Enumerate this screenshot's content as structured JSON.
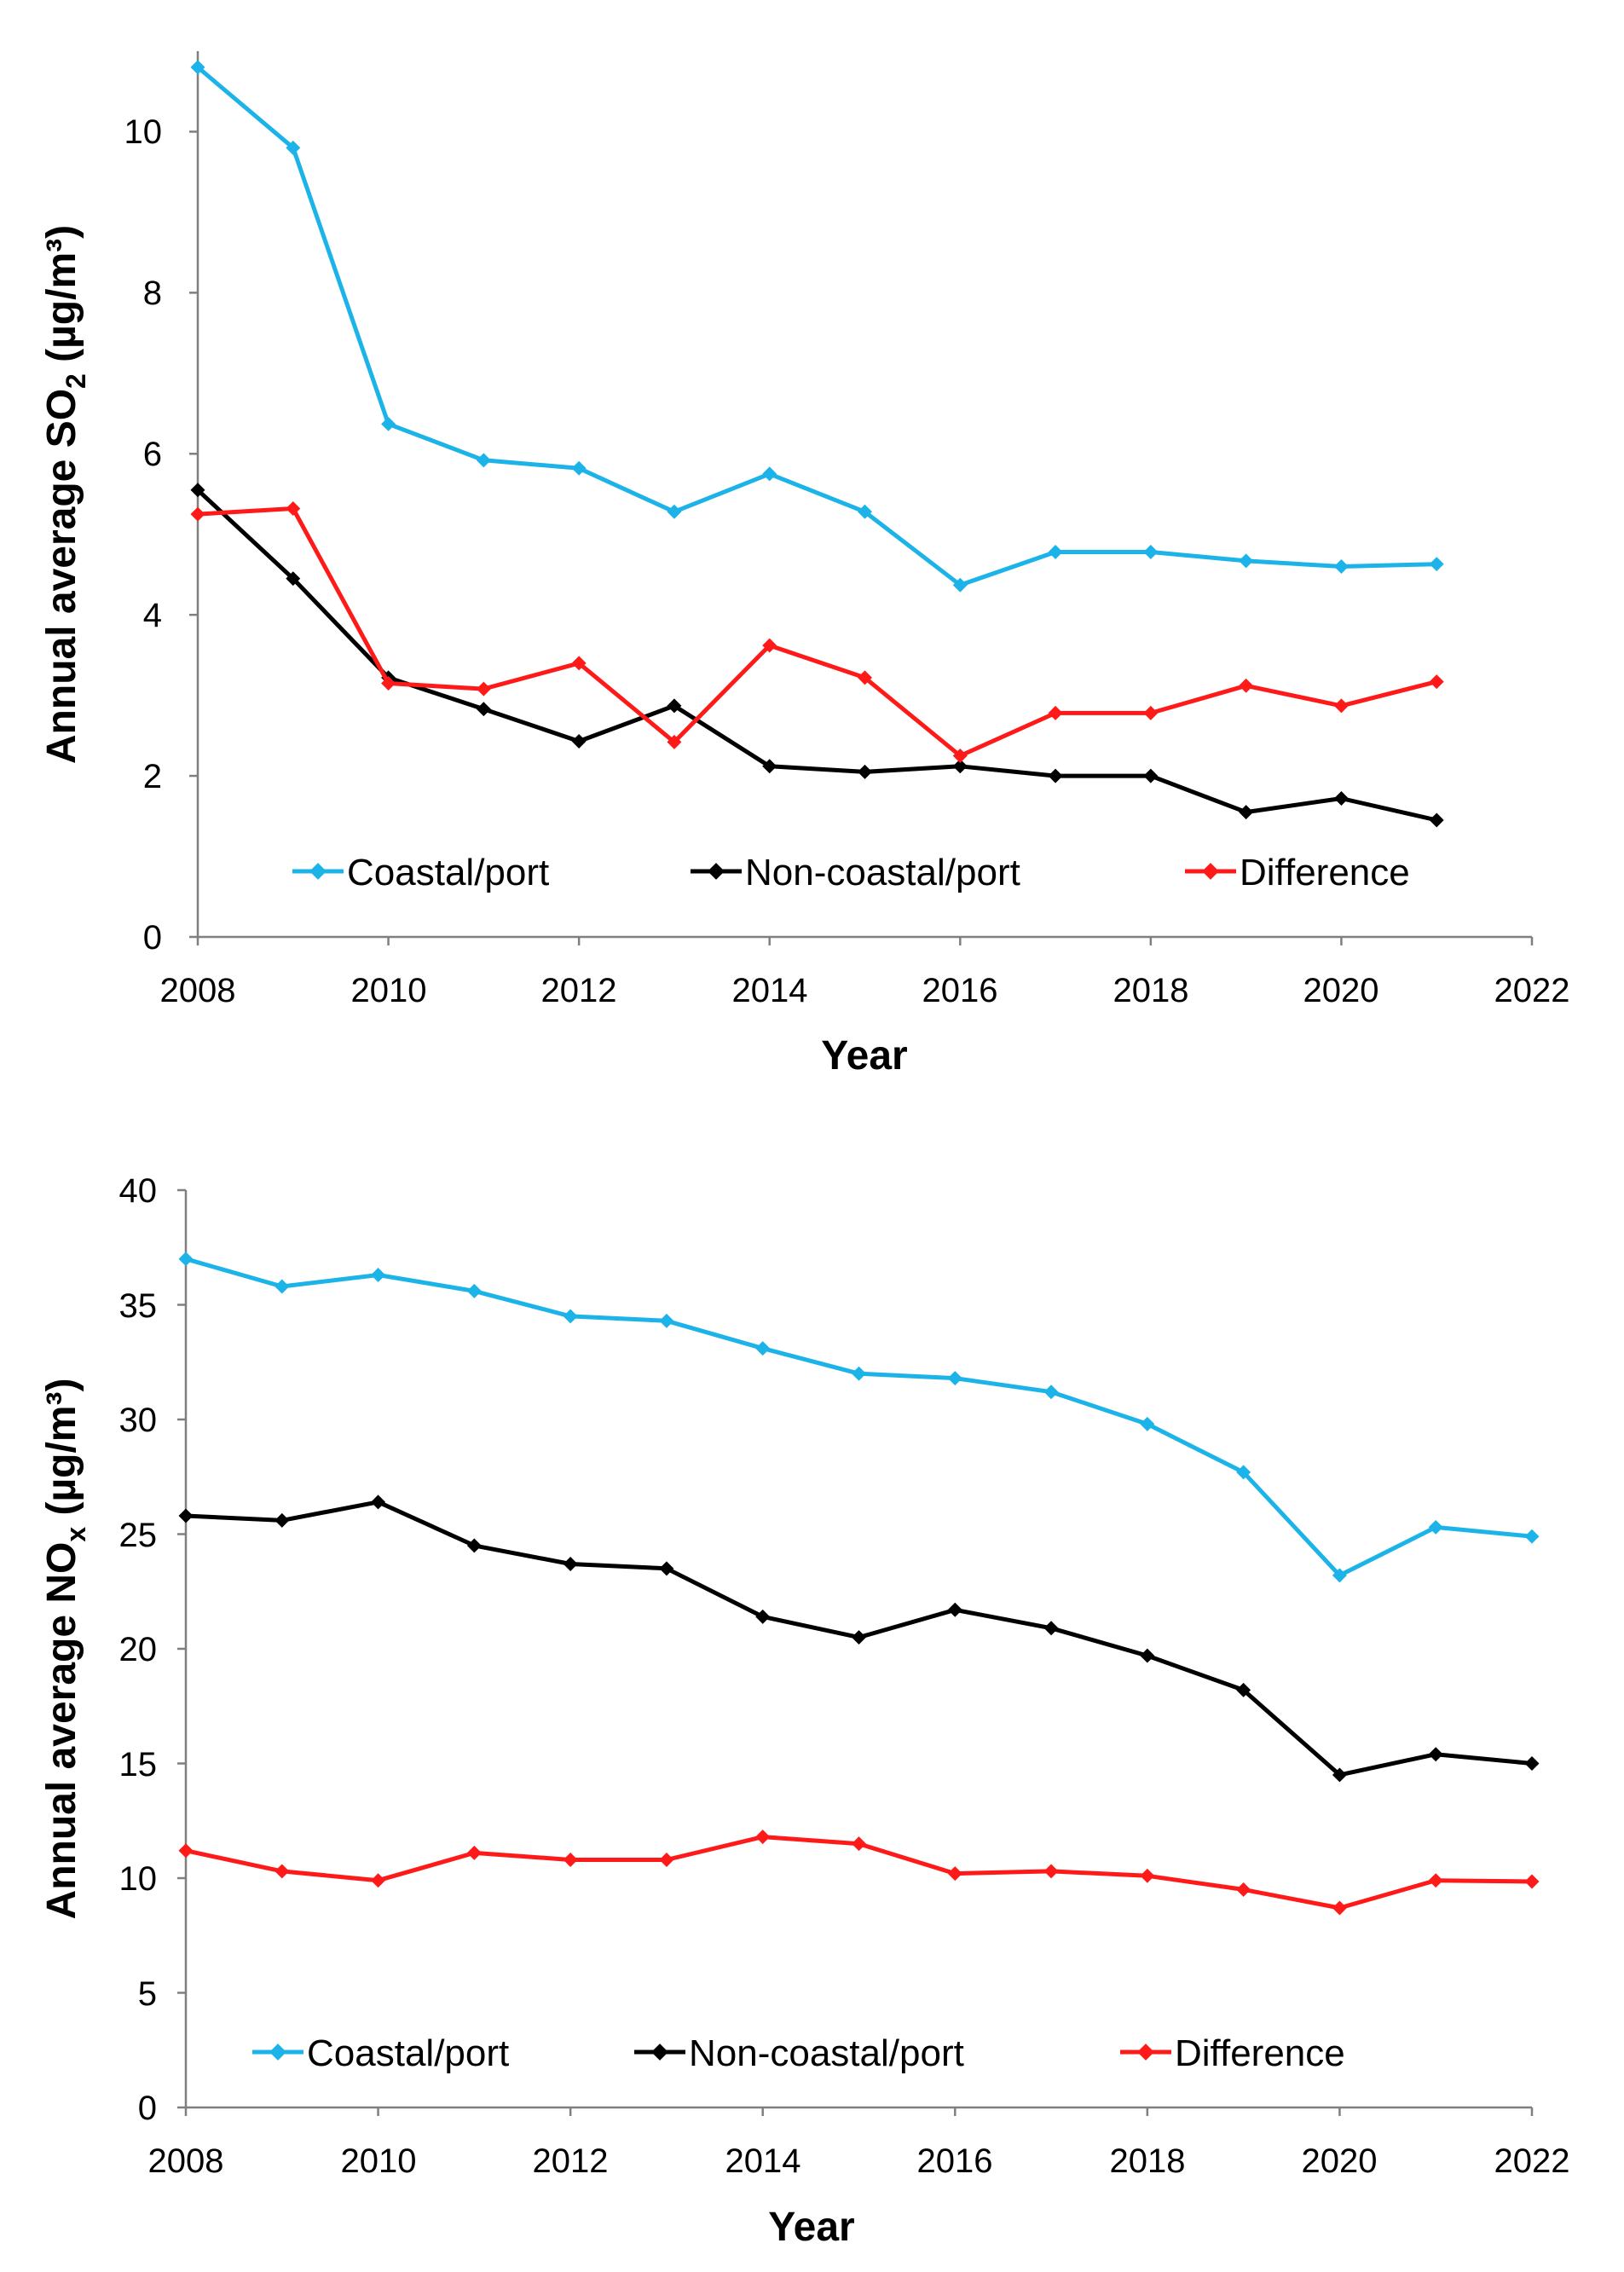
{
  "chart_data": [
    {
      "type": "line",
      "xlabel": "Year",
      "ylabel": "Annual average SO",
      "ylabel_subscript": "2",
      "ylabel_unit": " (µg/m³)",
      "xlim": [
        2008,
        2022
      ],
      "ylim": [
        0,
        11
      ],
      "xticks": [
        "2008",
        "2010",
        "2012",
        "2014",
        "2016",
        "2018",
        "2020",
        "2022"
      ],
      "yticks": [
        "0",
        "2",
        "4",
        "6",
        "8",
        "10"
      ],
      "x": [
        2008,
        2009,
        2010,
        2011,
        2012,
        2013,
        2014,
        2015,
        2016,
        2017,
        2018,
        2019,
        2020,
        2021
      ],
      "series": [
        {
          "name": "Coastal/port",
          "color": "#1cb4e8",
          "values": [
            10.8,
            9.8,
            6.37,
            5.92,
            5.82,
            5.28,
            5.75,
            5.28,
            4.37,
            4.78,
            4.78,
            4.67,
            4.6,
            4.63
          ]
        },
        {
          "name": "Non-coastal/port",
          "color": "#000000",
          "values": [
            5.55,
            4.45,
            3.22,
            2.83,
            2.43,
            2.87,
            2.12,
            2.05,
            2.12,
            2.0,
            2.0,
            1.55,
            1.72,
            1.45
          ]
        },
        {
          "name": "Difference",
          "color": "#ff1a1a",
          "values": [
            5.25,
            5.32,
            3.15,
            3.08,
            3.4,
            2.42,
            3.62,
            3.22,
            2.25,
            2.78,
            2.78,
            3.12,
            2.87,
            3.17
          ]
        }
      ],
      "legend": [
        "Coastal/port",
        "Non-coastal/port",
        "Difference"
      ]
    },
    {
      "type": "line",
      "xlabel": "Year",
      "ylabel": "Annual average NO",
      "ylabel_subscript": "x",
      "ylabel_unit": " (µg/m³)",
      "xlim": [
        2008,
        2022
      ],
      "ylim": [
        0,
        40
      ],
      "xticks": [
        "2008",
        "2010",
        "2012",
        "2014",
        "2016",
        "2018",
        "2020",
        "2022"
      ],
      "yticks": [
        "0",
        "5",
        "10",
        "15",
        "20",
        "25",
        "30",
        "35",
        "40"
      ],
      "x": [
        2008,
        2009,
        2010,
        2011,
        2012,
        2013,
        2014,
        2015,
        2016,
        2017,
        2018,
        2019,
        2020,
        2021,
        2022
      ],
      "series": [
        {
          "name": "Coastal/port",
          "color": "#1cb4e8",
          "values": [
            37.0,
            35.8,
            36.3,
            35.6,
            34.5,
            34.3,
            33.1,
            32.0,
            31.8,
            31.2,
            29.8,
            27.7,
            23.2,
            25.3,
            24.9
          ]
        },
        {
          "name": "Non-coastal/port",
          "color": "#000000",
          "values": [
            25.8,
            25.6,
            26.4,
            24.5,
            23.7,
            23.5,
            21.4,
            20.5,
            21.7,
            20.9,
            19.7,
            18.2,
            14.5,
            15.4,
            15.0
          ]
        },
        {
          "name": "Difference",
          "color": "#ff1a1a",
          "values": [
            11.2,
            10.3,
            9.9,
            11.1,
            10.8,
            10.8,
            11.8,
            11.5,
            10.2,
            10.3,
            10.1,
            9.5,
            8.7,
            9.9,
            9.85
          ]
        }
      ],
      "legend": [
        "Coastal/port",
        "Non-coastal/port",
        "Difference"
      ]
    }
  ]
}
